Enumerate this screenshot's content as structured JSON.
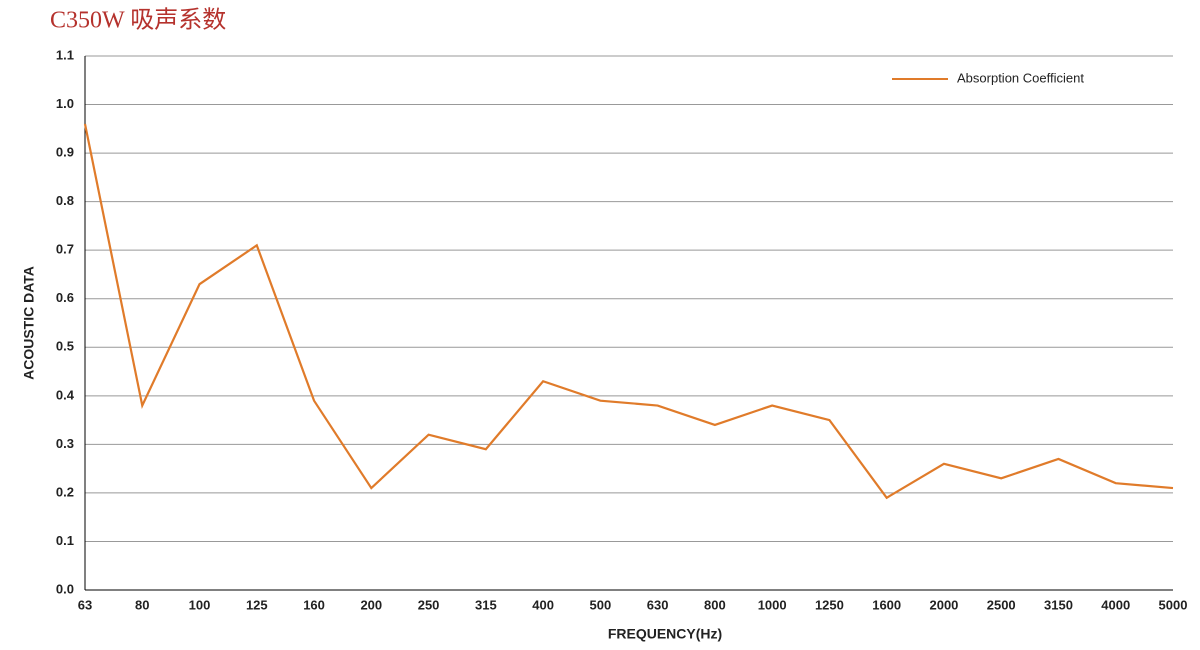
{
  "chart_data": {
    "type": "line",
    "title": "C350W 吸声系数",
    "x_label": "FREQUENCY(Hz)",
    "y_label": "ACOUSTIC DATA",
    "categories": [
      "63",
      "80",
      "100",
      "125",
      "160",
      "200",
      "250",
      "315",
      "400",
      "500",
      "630",
      "800",
      "1000",
      "1250",
      "1600",
      "2000",
      "2500",
      "3150",
      "4000",
      "5000"
    ],
    "series": [
      {
        "name": "Absorption Coefficient",
        "color": "#e07b2a",
        "values": [
          0.96,
          0.38,
          0.63,
          0.71,
          0.39,
          0.21,
          0.32,
          0.29,
          0.43,
          0.39,
          0.38,
          0.34,
          0.38,
          0.35,
          0.19,
          0.26,
          0.23,
          0.27,
          0.22,
          0.21
        ]
      }
    ],
    "ylim": [
      0,
      1.1
    ],
    "yticks": [
      {
        "value": 0,
        "label": "0.0"
      },
      0.1,
      0.2,
      0.3,
      0.4,
      0.5,
      0.6,
      0.7,
      0.8,
      0.9,
      {
        "value": 1,
        "label": "1.0"
      },
      1.1
    ],
    "grid": true,
    "legend": "top-right"
  }
}
